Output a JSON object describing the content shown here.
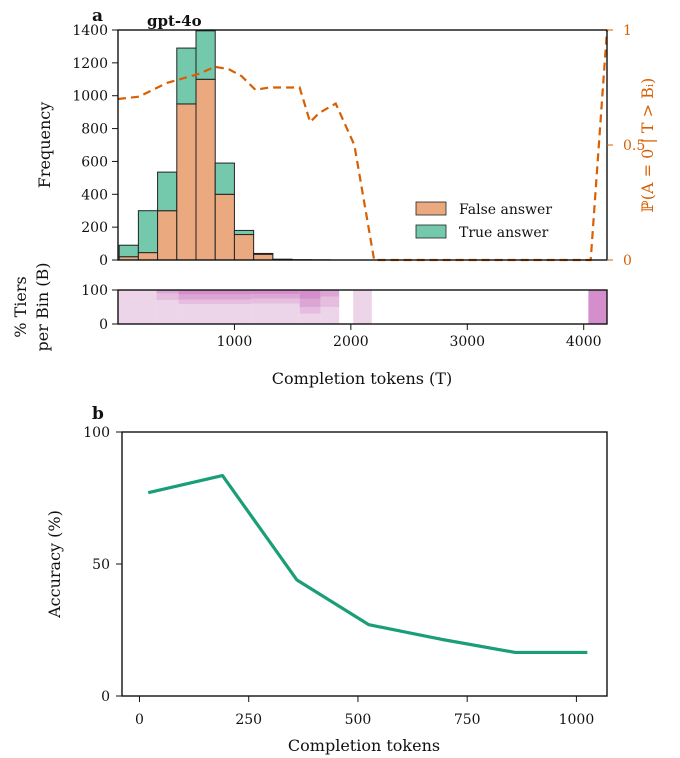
{
  "chart_data": [
    {
      "panel_label": "a",
      "type": "bar",
      "title": "gpt-4o",
      "xlabel": "Completion tokens (T)",
      "ylabel": "Frequency",
      "ylabel_right": "ℙ(A = 0 | T > Bᵢ)",
      "xlim": [
        0,
        4200
      ],
      "ylim": [
        0,
        1400
      ],
      "ylim_right": [
        0,
        1
      ],
      "x_ticks": [
        "1000",
        "2000",
        "3000",
        "4000"
      ],
      "y_ticks": [
        "0",
        "200",
        "400",
        "600",
        "800",
        "1000",
        "1200",
        "1400"
      ],
      "y_ticks_right": [
        "0",
        "0.5",
        "1"
      ],
      "stacked": true,
      "bin_width": 165,
      "bin_starts": [
        10,
        175,
        340,
        505,
        670,
        835,
        1000,
        1165,
        1330,
        1495,
        1660,
        1825
      ],
      "series": [
        {
          "name": "False answer",
          "color": "#eaa97f",
          "values": [
            20,
            45,
            300,
            950,
            1100,
            400,
            155,
            35,
            5,
            2,
            1,
            0
          ]
        },
        {
          "name": "True answer",
          "color": "#74c9ad",
          "values": [
            70,
            255,
            235,
            340,
            295,
            190,
            25,
            5,
            0,
            0,
            0,
            0
          ]
        }
      ],
      "legend_position": "lower-right",
      "conditional_prob_line": {
        "color": "#d95f02",
        "style": "dashed",
        "x": [
          0,
          180,
          300,
          420,
          560,
          700,
          830,
          950,
          1060,
          1180,
          1300,
          1430,
          1560,
          1650,
          1730,
          1870,
          2030,
          2200,
          4060,
          4200
        ],
        "y": [
          0.7,
          0.71,
          0.74,
          0.77,
          0.79,
          0.81,
          0.84,
          0.83,
          0.8,
          0.74,
          0.75,
          0.75,
          0.75,
          0.6,
          0.64,
          0.68,
          0.5,
          0.0,
          0.0,
          1.0
        ]
      }
    },
    {
      "type": "heatmap",
      "ylabel": "% Tiers per Bin (B)",
      "y_ticks": [
        "0",
        "100"
      ],
      "ylim": [
        0,
        100
      ],
      "x_ticks": [
        "1000",
        "2000",
        "3000",
        "4000"
      ],
      "xlim": [
        0,
        4200
      ],
      "tier_colors": [
        "#ecd5e9",
        "#e4bddf",
        "#dba6d4",
        "#d38ecb"
      ],
      "bins": [
        {
          "x0": 0,
          "x1": 330,
          "tiers": [
            100,
            0,
            0,
            0
          ]
        },
        {
          "x0": 330,
          "x1": 520,
          "tiers": [
            70,
            20,
            7,
            3
          ]
        },
        {
          "x0": 520,
          "x1": 1150,
          "tiers": [
            58,
            14,
            14,
            14
          ]
        },
        {
          "x0": 1150,
          "x1": 1560,
          "tiers": [
            60,
            15,
            13,
            12
          ]
        },
        {
          "x0": 1560,
          "x1": 1740,
          "tiers": [
            30,
            20,
            25,
            25
          ]
        },
        {
          "x0": 1740,
          "x1": 1900,
          "tiers": [
            50,
            30,
            20,
            0
          ]
        },
        {
          "x0": 2020,
          "x1": 2180,
          "tiers": [
            100,
            0,
            0,
            0
          ]
        },
        {
          "x0": 4040,
          "x1": 4200,
          "tiers": [
            0,
            0,
            0,
            100
          ]
        }
      ]
    },
    {
      "panel_label": "b",
      "type": "line",
      "xlabel": "Completion tokens",
      "ylabel": "Accuracy (%)",
      "xlim": [
        -40,
        1070
      ],
      "ylim": [
        0,
        100
      ],
      "x_ticks": [
        "0",
        "250",
        "500",
        "750",
        "1000"
      ],
      "y_ticks": [
        "0",
        "50",
        "100"
      ],
      "color": "#1a9e77",
      "series": [
        {
          "x": [
            20,
            190,
            360,
            525,
            690,
            860,
            1025
          ],
          "values": [
            77,
            83.5,
            44,
            27,
            21.5,
            16.5,
            16.5
          ]
        }
      ]
    }
  ]
}
